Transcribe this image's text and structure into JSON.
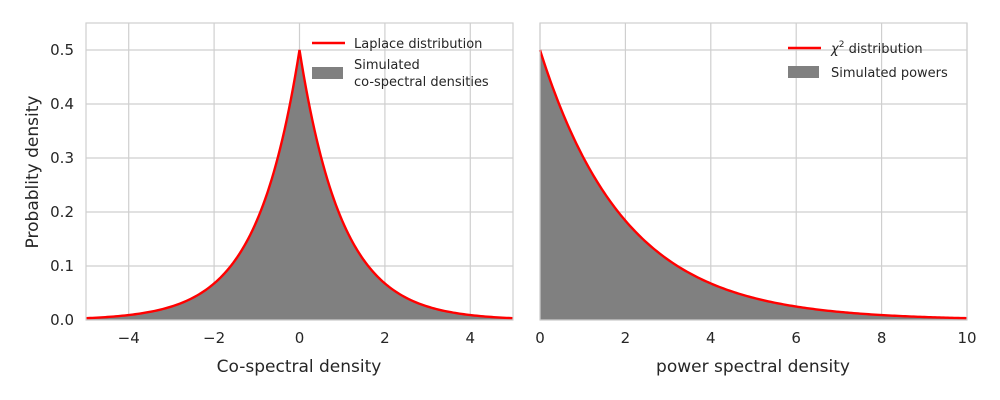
{
  "colors": {
    "curve": "#ff0000",
    "fill": "#808080",
    "grid": "#cfcfcf",
    "text": "#262626"
  },
  "chart_data": [
    {
      "type": "area",
      "xlabel": "Co-spectral density",
      "ylabel": "Probablity density",
      "xlim": [
        -5,
        5
      ],
      "ylim": [
        0,
        0.55
      ],
      "xticks": [
        -4,
        -2,
        0,
        2,
        4
      ],
      "xtick_labels": [
        "−4",
        "−2",
        "0",
        "2",
        "4"
      ],
      "yticks": [
        0,
        0.1,
        0.2,
        0.3,
        0.4,
        0.5
      ],
      "ytick_labels": [
        "0.0",
        "0.1",
        "0.2",
        "0.3",
        "0.4",
        "0.5"
      ],
      "grid": true,
      "legend_position": "top-right",
      "series": [
        {
          "name": "Laplace distribution",
          "kind": "line",
          "x": [
            -5,
            -4,
            -3,
            -2,
            -1.5,
            -1,
            -0.5,
            0,
            0.5,
            1,
            1.5,
            2,
            3,
            4,
            5
          ],
          "y": [
            0.0034,
            0.0092,
            0.0249,
            0.0677,
            0.1116,
            0.1839,
            0.3033,
            0.5,
            0.3033,
            0.1839,
            0.1116,
            0.0677,
            0.0249,
            0.0092,
            0.0034
          ]
        },
        {
          "name": "Simulated\n co-spectral densities",
          "kind": "histogram",
          "x": [
            -5,
            -4,
            -3,
            -2,
            -1.5,
            -1,
            -0.5,
            0,
            0.5,
            1,
            1.5,
            2,
            3,
            4,
            5
          ],
          "y": [
            0.0034,
            0.0092,
            0.0249,
            0.0677,
            0.1116,
            0.1839,
            0.3033,
            0.5,
            0.3033,
            0.1839,
            0.1116,
            0.0677,
            0.0249,
            0.0092,
            0.0034
          ]
        }
      ]
    },
    {
      "type": "area",
      "xlabel": "power spectral density",
      "ylabel": "",
      "xlim": [
        0,
        10
      ],
      "ylim": [
        0,
        0.55
      ],
      "xticks": [
        0,
        2,
        4,
        6,
        8,
        10
      ],
      "xtick_labels": [
        "0",
        "2",
        "4",
        "6",
        "8",
        "10"
      ],
      "grid": true,
      "legend_position": "top-right",
      "series": [
        {
          "name": "χ² distribution",
          "name_base": "χ",
          "name_sup": "2",
          "name_rest": " distribution",
          "kind": "line",
          "x": [
            0,
            0.5,
            1,
            1.5,
            2,
            3,
            4,
            5,
            6,
            7,
            8,
            9,
            10
          ],
          "y": [
            0.5,
            0.3894,
            0.3033,
            0.2362,
            0.1839,
            0.1116,
            0.0677,
            0.041,
            0.0249,
            0.0151,
            0.0092,
            0.0056,
            0.0034
          ]
        },
        {
          "name": "Simulated powers",
          "kind": "histogram",
          "x": [
            0,
            0.5,
            1,
            1.5,
            2,
            3,
            4,
            5,
            6,
            7,
            8,
            9,
            10
          ],
          "y": [
            0.5,
            0.3894,
            0.3033,
            0.2362,
            0.1839,
            0.1116,
            0.0677,
            0.041,
            0.0249,
            0.0151,
            0.0092,
            0.0056,
            0.0034
          ]
        }
      ]
    }
  ]
}
